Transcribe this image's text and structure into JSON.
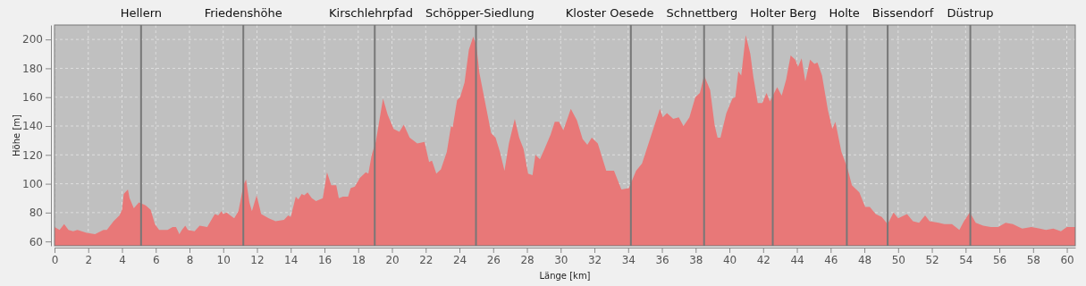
{
  "chart_data": {
    "type": "area",
    "xlabel": "Länge [km]",
    "ylabel": "Höhe [m]",
    "xlim": [
      0,
      60.5
    ],
    "ylim": [
      57,
      210
    ],
    "xticks": [
      0,
      2,
      4,
      6,
      8,
      10,
      12,
      14,
      16,
      18,
      20,
      22,
      24,
      26,
      28,
      30,
      32,
      34,
      36,
      38,
      40,
      42,
      44,
      46,
      48,
      50,
      52,
      54,
      56,
      58,
      60
    ],
    "yticks": [
      60,
      80,
      100,
      120,
      140,
      160,
      180,
      200
    ],
    "grid": true,
    "ref_lines": [
      {
        "axis": "x",
        "value": 5.13,
        "label": "Hellern",
        "color": "#777777"
      },
      {
        "axis": "x",
        "value": 11.19,
        "label": "Friedenshöhe",
        "color": "#777777"
      },
      {
        "axis": "x",
        "value": 18.98,
        "label": "Kirschlehrpfad",
        "color": "#777777"
      },
      {
        "axis": "x",
        "value": 24.98,
        "label": "Schöpper-Siedlung",
        "color": "#777777"
      },
      {
        "axis": "x",
        "value": 34.16,
        "label": "Kloster Oesede",
        "color": "#777777"
      },
      {
        "axis": "x",
        "value": 38.5,
        "label": "Schnettberg",
        "color": "#777777"
      },
      {
        "axis": "x",
        "value": 42.57,
        "label": "Holter Berg",
        "color": "#777777"
      },
      {
        "axis": "x",
        "value": 46.96,
        "label": "Holte",
        "color": "#777777"
      },
      {
        "axis": "x",
        "value": 49.38,
        "label": "Bissendorf",
        "color": "#777777"
      },
      {
        "axis": "x",
        "value": 54.28,
        "label": "Düstrup",
        "color": "#777777"
      }
    ],
    "series": [
      {
        "color": "#e87878",
        "x": [
          0,
          0.3,
          0.57,
          0.83,
          1.1,
          1.36,
          1.9,
          2.4,
          2.9,
          3.1,
          3.5,
          3.85,
          4.0,
          4.1,
          4.35,
          4.45,
          4.7,
          5.0,
          5.4,
          5.7,
          5.95,
          6.2,
          6.7,
          7.0,
          7.2,
          7.4,
          7.55,
          7.75,
          7.9,
          8.3,
          8.6,
          9.05,
          9.5,
          9.7,
          9.9,
          10.0,
          10.2,
          10.65,
          10.9,
          11.2,
          11.35,
          11.55,
          11.7,
          11.98,
          12.25,
          12.7,
          13.1,
          13.6,
          13.85,
          14.0,
          14.3,
          14.45,
          14.65,
          14.8,
          15.0,
          15.25,
          15.5,
          15.9,
          16.15,
          16.4,
          16.7,
          16.85,
          17.1,
          17.4,
          17.55,
          17.8,
          18.1,
          18.45,
          18.6,
          18.8,
          19.04,
          19.47,
          19.74,
          20.1,
          20.44,
          20.7,
          21.05,
          21.5,
          21.93,
          22.2,
          22.37,
          22.63,
          22.9,
          23.25,
          23.5,
          23.6,
          23.86,
          24.04,
          24.3,
          24.56,
          24.82,
          25.0,
          25.18,
          25.53,
          25.88,
          26.14,
          26.4,
          26.67,
          26.93,
          27.28,
          27.54,
          27.8,
          28.07,
          28.33,
          28.5,
          28.77,
          29.04,
          29.4,
          29.65,
          29.9,
          30.16,
          30.6,
          30.96,
          31.3,
          31.58,
          31.84,
          32.2,
          32.7,
          33.16,
          33.6,
          34.04,
          34.47,
          34.82,
          35.35,
          35.88,
          36.05,
          36.3,
          36.67,
          37.0,
          37.28,
          37.63,
          37.98,
          38.25,
          38.5,
          38.86,
          39.12,
          39.3,
          39.47,
          39.82,
          40.18,
          40.35,
          40.53,
          40.7,
          40.97,
          41.24,
          41.42,
          41.68,
          41.95,
          42.2,
          42.4,
          42.83,
          43.1,
          43.36,
          43.63,
          43.9,
          44.07,
          44.28,
          44.5,
          44.78,
          45.04,
          45.22,
          45.49,
          45.84,
          46.1,
          46.28,
          46.64,
          46.99,
          47.26,
          47.7,
          48.05,
          48.32,
          48.67,
          49.03,
          49.38,
          49.73,
          50.0,
          50.53,
          50.88,
          51.24,
          51.6,
          51.86,
          52.4,
          52.74,
          53.19,
          53.63,
          53.9,
          54.25,
          54.6,
          55.04,
          55.49,
          55.93,
          56.37,
          56.8,
          57.35,
          57.9,
          58.4,
          58.76,
          59.2,
          59.65,
          60.0,
          60.5
        ],
        "values": [
          70,
          68,
          72,
          68,
          67,
          68,
          66,
          65,
          68,
          68,
          74,
          78,
          82,
          93,
          96,
          90,
          83,
          87,
          85,
          82,
          72,
          68,
          68,
          70,
          70,
          65,
          68,
          71,
          68,
          67,
          71,
          70,
          79,
          78,
          81,
          79,
          80,
          76,
          81,
          99,
          103,
          87,
          81,
          92,
          79,
          76,
          74,
          75,
          78,
          77,
          91,
          89,
          93,
          92,
          94,
          90,
          88,
          90,
          108,
          99,
          99,
          90,
          91,
          91,
          97,
          98,
          104,
          108,
          107,
          120,
          129,
          159,
          148,
          138,
          136,
          141,
          132,
          128,
          129,
          115,
          116,
          107,
          110,
          122,
          140,
          139,
          158,
          160,
          170,
          193,
          202,
          196,
          177,
          156,
          135,
          132,
          122,
          109,
          128,
          145,
          132,
          124,
          107,
          106,
          120,
          117,
          124,
          134,
          143,
          143,
          137,
          152,
          144,
          131,
          127,
          132,
          128,
          109,
          109,
          96,
          97,
          109,
          114,
          133,
          152,
          146,
          149,
          145,
          146,
          140,
          146,
          160,
          163,
          175,
          165,
          141,
          132,
          132,
          149,
          159,
          160,
          178,
          175,
          203,
          190,
          174,
          156,
          156,
          163,
          157,
          167,
          161,
          172,
          189,
          186,
          181,
          187,
          171,
          186,
          183,
          184,
          175,
          151,
          138,
          143,
          122,
          111,
          99,
          94,
          84,
          84,
          79,
          77,
          72,
          80,
          76,
          79,
          74,
          73,
          78,
          74,
          73,
          72,
          72,
          68,
          74,
          80,
          73,
          71,
          70,
          70,
          73,
          72,
          69,
          70,
          69,
          68,
          69,
          67,
          70,
          70
        ]
      }
    ]
  }
}
